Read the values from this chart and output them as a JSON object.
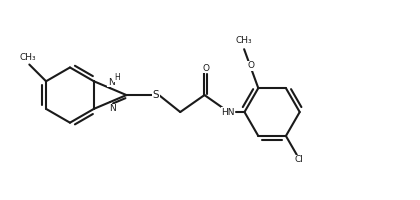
{
  "bg": "#ffffff",
  "lc": "#1a1a1a",
  "lw": 1.5,
  "fs": 6.5,
  "figsize": [
    4.2,
    2.0
  ],
  "dpi": 100
}
